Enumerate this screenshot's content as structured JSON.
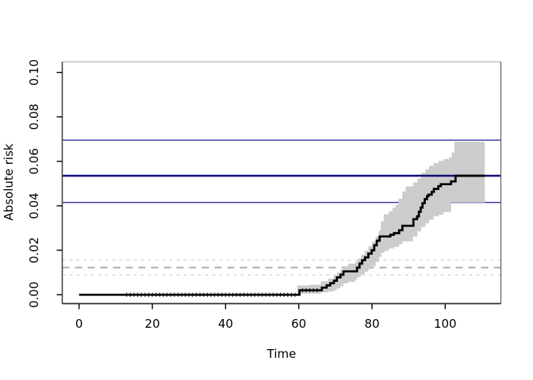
{
  "chart_data": {
    "type": "line",
    "subtype": "step-survival-risk-curve-with-confidence-band",
    "title": "",
    "xlabel": "Time",
    "ylabel": "Absolute risk",
    "xlim": [
      -4.6,
      115.2
    ],
    "ylim": [
      -0.004,
      0.1048
    ],
    "grid": false,
    "x_ticks": [
      {
        "v": 0,
        "label": "0"
      },
      {
        "v": 20,
        "label": "20"
      },
      {
        "v": 40,
        "label": "40"
      },
      {
        "v": 60,
        "label": "60"
      },
      {
        "v": 80,
        "label": "80"
      },
      {
        "v": 100,
        "label": "100"
      }
    ],
    "y_ticks": [
      {
        "v": 0.0,
        "label": "0.00"
      },
      {
        "v": 0.02,
        "label": "0.02"
      },
      {
        "v": 0.04,
        "label": "0.04"
      },
      {
        "v": 0.06,
        "label": "0.06"
      },
      {
        "v": 0.08,
        "label": "0.08"
      },
      {
        "v": 0.1,
        "label": "0.10"
      }
    ],
    "series": [
      {
        "name": "absolute-risk-step-curve",
        "color": "#000000",
        "width": 2.7,
        "points": [
          [
            0,
            0
          ],
          [
            59.6,
            0
          ],
          [
            60.2,
            0.002
          ],
          [
            65.8,
            0.002
          ],
          [
            66.3,
            0.0032
          ],
          [
            67.6,
            0.0042
          ],
          [
            68.6,
            0.0052
          ],
          [
            69.6,
            0.0063
          ],
          [
            70.4,
            0.0078
          ],
          [
            71.4,
            0.009
          ],
          [
            72.2,
            0.0105
          ],
          [
            75.4,
            0.0105
          ],
          [
            75.9,
            0.0122
          ],
          [
            76.6,
            0.014
          ],
          [
            77.3,
            0.0155
          ],
          [
            78.1,
            0.0168
          ],
          [
            79.0,
            0.0185
          ],
          [
            79.9,
            0.02
          ],
          [
            80.6,
            0.0222
          ],
          [
            81.3,
            0.0243
          ],
          [
            82.1,
            0.0262
          ],
          [
            84.6,
            0.0262
          ],
          [
            85.0,
            0.027
          ],
          [
            86.0,
            0.0277
          ],
          [
            87.4,
            0.029
          ],
          [
            88.3,
            0.031
          ],
          [
            91.0,
            0.031
          ],
          [
            91.3,
            0.034
          ],
          [
            92.3,
            0.0352
          ],
          [
            92.8,
            0.0373
          ],
          [
            93.3,
            0.0392
          ],
          [
            93.8,
            0.0412
          ],
          [
            94.4,
            0.043
          ],
          [
            95.0,
            0.0443
          ],
          [
            95.4,
            0.045
          ],
          [
            96.3,
            0.0463
          ],
          [
            96.9,
            0.0476
          ],
          [
            98.1,
            0.0488
          ],
          [
            98.8,
            0.0497
          ],
          [
            101.6,
            0.051
          ],
          [
            102.8,
            0.0535
          ],
          [
            110.8,
            0.0535
          ]
        ]
      }
    ],
    "confidence_band": {
      "name": "pointwise-confidence-band",
      "color": "#cccccc",
      "upper": [
        [
          59.6,
          0.0042
        ],
        [
          63.0,
          0.0045
        ],
        [
          66.0,
          0.006
        ],
        [
          68.0,
          0.0072
        ],
        [
          69.5,
          0.0085
        ],
        [
          70.4,
          0.01
        ],
        [
          71.4,
          0.0113
        ],
        [
          72.2,
          0.0128
        ],
        [
          73.5,
          0.014
        ],
        [
          75.4,
          0.0148
        ],
        [
          76.0,
          0.0162
        ],
        [
          77.0,
          0.018
        ],
        [
          78.0,
          0.0198
        ],
        [
          79.0,
          0.0218
        ],
        [
          80.0,
          0.0238
        ],
        [
          81.0,
          0.0262
        ],
        [
          81.8,
          0.0288
        ],
        [
          82.4,
          0.033
        ],
        [
          83.2,
          0.0362
        ],
        [
          84.6,
          0.0375
        ],
        [
          85.6,
          0.039
        ],
        [
          86.4,
          0.0405
        ],
        [
          87.2,
          0.0432
        ],
        [
          88.3,
          0.0465
        ],
        [
          89.2,
          0.0487
        ],
        [
          91.2,
          0.0505
        ],
        [
          92.4,
          0.0523
        ],
        [
          93.4,
          0.0548
        ],
        [
          94.6,
          0.0565
        ],
        [
          95.6,
          0.058
        ],
        [
          96.8,
          0.0592
        ],
        [
          98.2,
          0.0602
        ],
        [
          99.5,
          0.061
        ],
        [
          101.0,
          0.0618
        ],
        [
          101.8,
          0.064
        ],
        [
          102.5,
          0.0688
        ],
        [
          110.8,
          0.0688
        ]
      ],
      "lower": [
        [
          59.6,
          0.0002
        ],
        [
          66.0,
          0.0005
        ],
        [
          68.0,
          0.001
        ],
        [
          69.5,
          0.0014
        ],
        [
          70.4,
          0.002
        ],
        [
          71.4,
          0.0028
        ],
        [
          72.2,
          0.0038
        ],
        [
          73.5,
          0.0052
        ],
        [
          75.4,
          0.0058
        ],
        [
          76.0,
          0.0068
        ],
        [
          77.0,
          0.008
        ],
        [
          78.0,
          0.0092
        ],
        [
          79.0,
          0.0103
        ],
        [
          80.0,
          0.0115
        ],
        [
          81.0,
          0.0128
        ],
        [
          82.0,
          0.0148
        ],
        [
          82.6,
          0.017
        ],
        [
          83.4,
          0.0188
        ],
        [
          84.6,
          0.0198
        ],
        [
          86.0,
          0.0208
        ],
        [
          87.4,
          0.0215
        ],
        [
          88.3,
          0.0228
        ],
        [
          91.2,
          0.024
        ],
        [
          92.4,
          0.0262
        ],
        [
          93.4,
          0.0285
        ],
        [
          94.6,
          0.0305
        ],
        [
          95.6,
          0.0322
        ],
        [
          96.8,
          0.0338
        ],
        [
          98.2,
          0.0352
        ],
        [
          99.5,
          0.036
        ],
        [
          101.6,
          0.0372
        ],
        [
          102.8,
          0.0415
        ],
        [
          110.8,
          0.0415
        ]
      ]
    },
    "reference_lines": [
      {
        "name": "reference-upper-ci-line",
        "value": 0.0695,
        "color": "#30309c",
        "width": 1.4,
        "dash": "",
        "layer": "under"
      },
      {
        "name": "reference-lower-ci-line",
        "value": 0.0415,
        "color": "#30309c",
        "width": 1.4,
        "dash": "",
        "layer": "under"
      },
      {
        "name": "comparison-upper-ci-line",
        "value": 0.0155,
        "color": "#d8d8d8",
        "width": 1.3,
        "dash": "4 5",
        "layer": "under"
      },
      {
        "name": "comparison-estimate-line",
        "value": 0.0122,
        "color": "#b5b5b5",
        "width": 2.2,
        "dash": "9 7",
        "layer": "under"
      },
      {
        "name": "comparison-lower-ci-line",
        "value": 0.0089,
        "color": "#d8d8d8",
        "width": 1.3,
        "dash": "4 5",
        "layer": "under"
      },
      {
        "name": "reference-estimate-line",
        "value": 0.0535,
        "color": "#0f0f77",
        "width": 2.6,
        "dash": "",
        "layer": "over"
      }
    ],
    "censor_tick_times": [
      13,
      14,
      15,
      16,
      17,
      18,
      19,
      20,
      21,
      22,
      23,
      24,
      25,
      26,
      27,
      28,
      29,
      30,
      31,
      32,
      33,
      34,
      35,
      36,
      37,
      38,
      39,
      40,
      41,
      42,
      43,
      44,
      45,
      46,
      47,
      48,
      49,
      50,
      51,
      52,
      53,
      54,
      55,
      56,
      57,
      58,
      59,
      61,
      62,
      63,
      64,
      65
    ],
    "legend": null
  },
  "colors": {
    "background": "#ffffff",
    "curve": "#000000",
    "band": "#cccccc",
    "navy_thick": "#0f0f77",
    "navy_thin": "#30309c",
    "dash_mid": "#b5b5b5",
    "dash_light": "#d8d8d8",
    "box_top": "#c4c4c4",
    "box_right": "#6e6e6e",
    "box_left": "#454545",
    "box_bottom": "#303030"
  }
}
